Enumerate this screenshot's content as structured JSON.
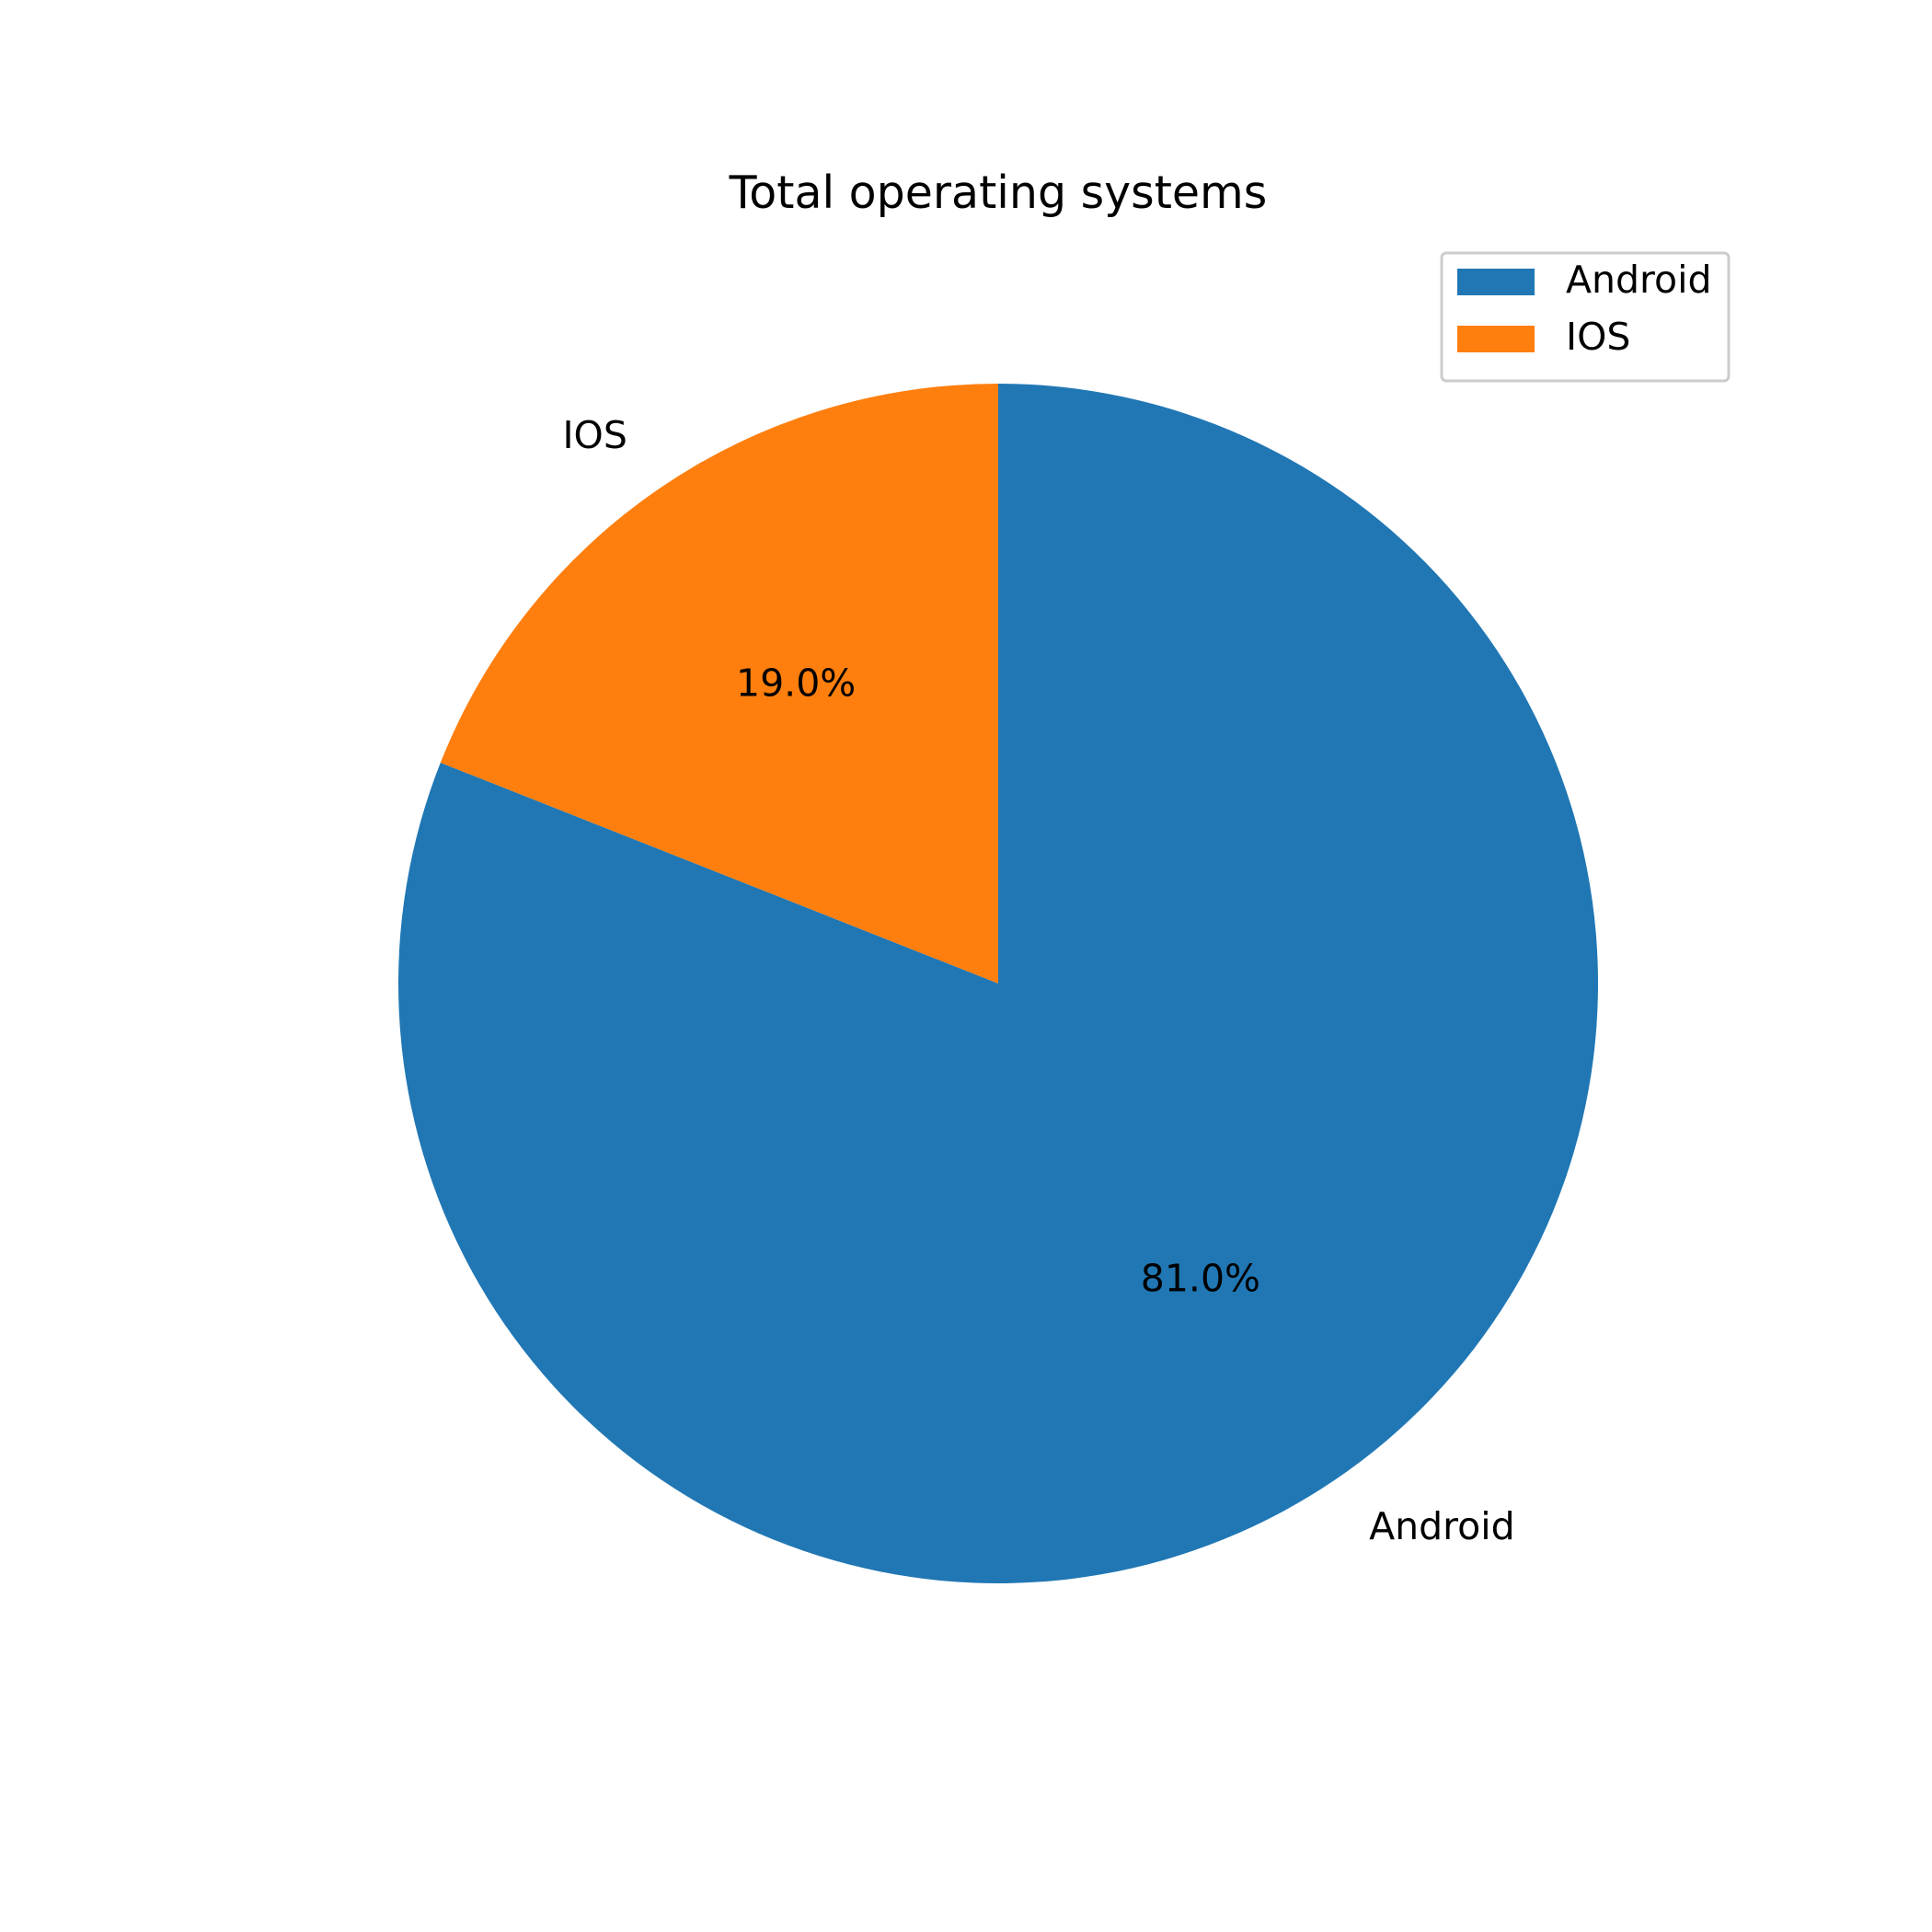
{
  "chart_data": {
    "type": "pie",
    "title": "Total operating systems",
    "start_angle_deg": 90,
    "direction": "clockwise",
    "legend_position": "top-right",
    "slices": [
      {
        "label": "Android",
        "value": 81.0,
        "pct_label": "81.0%",
        "color": "#2077b4"
      },
      {
        "label": "IOS",
        "value": 19.0,
        "pct_label": "19.0%",
        "color": "#ff7f0e"
      }
    ]
  }
}
